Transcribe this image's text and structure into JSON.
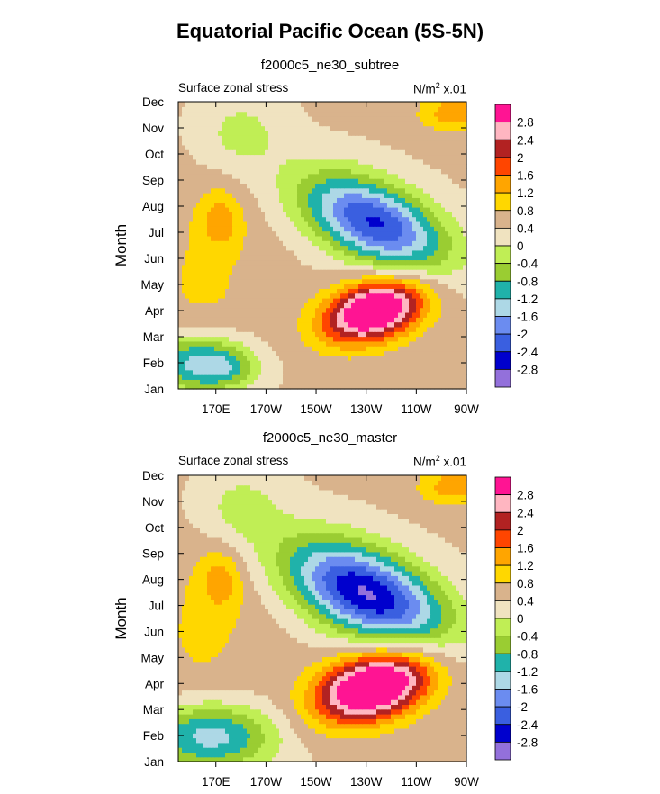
{
  "figure": {
    "title": "Equatorial Pacific Ocean (5S-5N)"
  },
  "colors": [
    "#9370db",
    "#0000cd",
    "#3a5fe0",
    "#6b8cf0",
    "#add8e6",
    "#20b2aa",
    "#9acd32",
    "#c0ee55",
    "#f0e3c0",
    "#d9b38c",
    "#ffd700",
    "#ffa500",
    "#ff4500",
    "#b22222",
    "#ffb6c1",
    "#ff1493"
  ],
  "chart_data": [
    {
      "type": "heatmap",
      "title": "f2000c5_ne30_subtree",
      "left_label": "Surface zonal stress",
      "units": "N/m",
      "units_exp": "2",
      "units_scale": "x.01",
      "ylabel": "Month",
      "x_ticks": [
        "170E",
        "170W",
        "150W",
        "130W",
        "110W",
        "90W"
      ],
      "x_tick_lon": [
        170,
        190,
        210,
        230,
        250,
        270
      ],
      "x_range_lon": [
        155,
        270
      ],
      "y_ticks": [
        "Jan",
        "Feb",
        "Mar",
        "Apr",
        "May",
        "Jun",
        "Jul",
        "Aug",
        "Sep",
        "Oct",
        "Nov",
        "Dec"
      ],
      "y_range": [
        1,
        12
      ],
      "levels": [
        -2.8,
        -2.4,
        -2,
        -1.6,
        -1.2,
        -0.8,
        -0.4,
        0,
        0.4,
        0.8,
        1.2,
        1.6,
        2,
        2.4,
        2.8
      ],
      "colorbar_labels": [
        "2.8",
        "2.4",
        "2",
        "1.6",
        "1.2",
        "0.8",
        "0.4",
        "0",
        "-0.4",
        "-0.8",
        "-1.2",
        "-1.6",
        "-2",
        "-2.4",
        "-2.8"
      ],
      "features": [
        {
          "type": "base",
          "v": 0.45
        },
        {
          "lon": 233,
          "m": 4.0,
          "sx": 14,
          "sy": 0.8,
          "a": 3.4,
          "rot": 0.02
        },
        {
          "lon": 233,
          "m": 7.4,
          "sx": 20,
          "sy": 1.1,
          "a": -2.9,
          "rot": -0.032
        },
        {
          "lon": 163,
          "m": 2.0,
          "sx": 14,
          "sy": 0.8,
          "a": -1.9
        },
        {
          "lon": 175,
          "m": 1.8,
          "sx": 8,
          "sy": 0.5,
          "a": -0.6
        },
        {
          "lon": 165,
          "m": 5.0,
          "sx": 18,
          "sy": 2.5,
          "a": 0.4
        },
        {
          "lon": 180,
          "m": 10.8,
          "sx": 12,
          "sy": 1.0,
          "a": -0.6
        },
        {
          "lon": 265,
          "m": 11.6,
          "sx": 10,
          "sy": 0.5,
          "a": 1.0
        },
        {
          "lon": 172,
          "m": 7.5,
          "sx": 6,
          "sy": 0.8,
          "a": 0.8
        }
      ]
    },
    {
      "type": "heatmap",
      "title": "f2000c5_ne30_master",
      "left_label": "Surface zonal stress",
      "units": "N/m",
      "units_exp": "2",
      "units_scale": "x.01",
      "ylabel": "Month",
      "x_ticks": [
        "170E",
        "170W",
        "150W",
        "130W",
        "110W",
        "90W"
      ],
      "x_tick_lon": [
        170,
        190,
        210,
        230,
        250,
        270
      ],
      "x_range_lon": [
        155,
        270
      ],
      "y_ticks": [
        "Jan",
        "Feb",
        "Mar",
        "Apr",
        "May",
        "Jun",
        "Jul",
        "Aug",
        "Sep",
        "Oct",
        "Nov",
        "Dec"
      ],
      "y_range": [
        1,
        12
      ],
      "levels": [
        -2.8,
        -2.4,
        -2,
        -1.6,
        -1.2,
        -0.8,
        -0.4,
        0,
        0.4,
        0.8,
        1.2,
        1.6,
        2,
        2.4,
        2.8
      ],
      "colorbar_labels": [
        "2.8",
        "2.4",
        "2",
        "1.6",
        "1.2",
        "0.8",
        "0.4",
        "0",
        "-0.4",
        "-0.8",
        "-1.2",
        "-1.6",
        "-2",
        "-2.4",
        "-2.8"
      ],
      "features": [
        {
          "type": "base",
          "v": 0.45
        },
        {
          "lon": 233,
          "m": 3.9,
          "sx": 16,
          "sy": 0.9,
          "a": 3.6,
          "rot": 0.02
        },
        {
          "lon": 230,
          "m": 7.5,
          "sx": 22,
          "sy": 1.2,
          "a": -3.3,
          "rot": -0.032
        },
        {
          "lon": 168,
          "m": 2.0,
          "sx": 18,
          "sy": 0.9,
          "a": -1.9
        },
        {
          "lon": 165,
          "m": 6.0,
          "sx": 18,
          "sy": 2.5,
          "a": 0.4
        },
        {
          "lon": 180,
          "m": 10.8,
          "sx": 12,
          "sy": 1.0,
          "a": -0.6
        },
        {
          "lon": 265,
          "m": 11.6,
          "sx": 10,
          "sy": 0.5,
          "a": 1.0
        },
        {
          "lon": 172,
          "m": 8.0,
          "sx": 6,
          "sy": 0.8,
          "a": 0.8
        }
      ]
    }
  ]
}
